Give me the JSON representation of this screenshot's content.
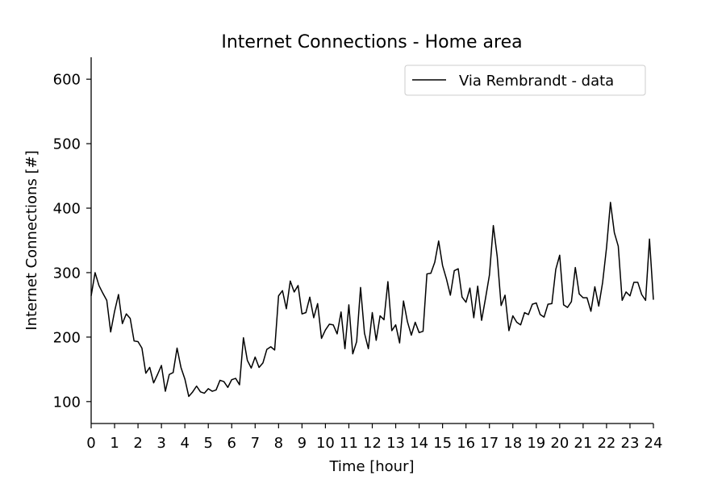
{
  "chart_data": {
    "type": "line",
    "title": "Internet Connections - Home area",
    "xlabel": "Time [hour]",
    "ylabel": "Internet Connections [#]",
    "xlim": [
      0,
      24
    ],
    "ylim": [
      66,
      634
    ],
    "x_ticks": [
      0,
      1,
      2,
      3,
      4,
      5,
      6,
      7,
      8,
      9,
      10,
      11,
      12,
      13,
      14,
      15,
      16,
      17,
      18,
      19,
      20,
      21,
      22,
      23,
      24
    ],
    "y_ticks": [
      100,
      200,
      300,
      400,
      500,
      600
    ],
    "grid": false,
    "legend_position": "top-right",
    "series": [
      {
        "name": "Via Rembrandt - data",
        "color": "#000000",
        "x": [
          0,
          0.167,
          0.333,
          0.5,
          0.667,
          0.833,
          1.0,
          1.167,
          1.333,
          1.5,
          1.667,
          1.833,
          2.0,
          2.167,
          2.333,
          2.5,
          2.667,
          2.833,
          3.0,
          3.167,
          3.333,
          3.5,
          3.667,
          3.833,
          4.0,
          4.167,
          4.333,
          4.5,
          4.667,
          4.833,
          5.0,
          5.167,
          5.333,
          5.5,
          5.667,
          5.833,
          6.0,
          6.167,
          6.333,
          6.5,
          6.667,
          6.833,
          7.0,
          7.167,
          7.333,
          7.5,
          7.667,
          7.833,
          8.0,
          8.167,
          8.333,
          8.5,
          8.667,
          8.833,
          9.0,
          9.167,
          9.333,
          9.5,
          9.667,
          9.833,
          10.0,
          10.167,
          10.333,
          10.5,
          10.667,
          10.833,
          11.0,
          11.167,
          11.333,
          11.5,
          11.667,
          11.833,
          12.0,
          12.167,
          12.333,
          12.5,
          12.667,
          12.833,
          13.0,
          13.167,
          13.333,
          13.5,
          13.667,
          13.833,
          14.0,
          14.167,
          14.333,
          14.5,
          14.667,
          14.833,
          15.0,
          15.167,
          15.333,
          15.5,
          15.667,
          15.833,
          16.0,
          16.167,
          16.333,
          16.5,
          16.667,
          16.833,
          17.0,
          17.167,
          17.333,
          17.5,
          17.667,
          17.833,
          18.0,
          18.167,
          18.333,
          18.5,
          18.667,
          18.833,
          19.0,
          19.167,
          19.333,
          19.5,
          19.667,
          19.833,
          20.0,
          20.167,
          20.333,
          20.5,
          20.667,
          20.833,
          21.0,
          21.167,
          21.333,
          21.5,
          21.667,
          21.833,
          22.0,
          22.167,
          22.333,
          22.5,
          22.667,
          22.833,
          23.0,
          23.167,
          23.333,
          23.5,
          23.667,
          23.833,
          24.0
        ],
        "values": [
          264,
          300,
          280,
          268,
          257,
          208,
          240,
          266,
          221,
          236,
          229,
          194,
          193,
          183,
          144,
          153,
          129,
          142,
          156,
          116,
          142,
          145,
          183,
          153,
          135,
          108,
          115,
          124,
          115,
          113,
          120,
          116,
          118,
          133,
          131,
          122,
          134,
          136,
          126,
          199,
          164,
          152,
          169,
          153,
          160,
          181,
          185,
          180,
          264,
          272,
          244,
          287,
          270,
          280,
          236,
          238,
          262,
          230,
          252,
          198,
          211,
          220,
          219,
          205,
          239,
          182,
          250,
          174,
          193,
          277,
          206,
          182,
          238,
          195,
          233,
          227,
          286,
          210,
          219,
          191,
          256,
          224,
          203,
          223,
          207,
          209,
          298,
          299,
          316,
          349,
          311,
          290,
          265,
          303,
          306,
          262,
          254,
          276,
          230,
          279,
          226,
          260,
          296,
          373,
          325,
          249,
          265,
          210,
          233,
          223,
          219,
          238,
          235,
          251,
          253,
          235,
          231,
          251,
          252,
          305,
          327,
          250,
          246,
          255,
          308,
          267,
          261,
          261,
          240,
          278,
          248,
          285,
          339,
          409,
          362,
          341,
          257,
          270,
          264,
          285,
          285,
          266,
          257,
          352,
          258
        ]
      }
    ]
  }
}
